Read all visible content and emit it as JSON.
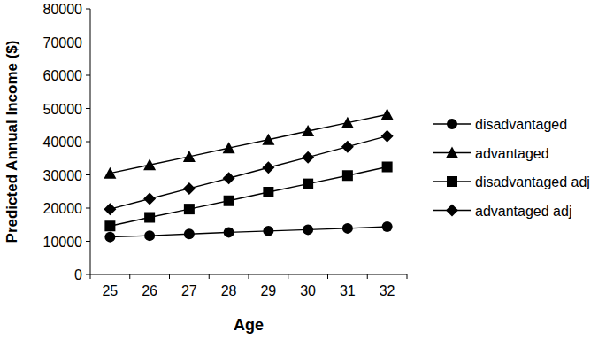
{
  "chart_data": {
    "type": "line",
    "x_label": "Age",
    "y_label": "Predicted Annual Income ($)",
    "categories": [
      "25",
      "26",
      "27",
      "28",
      "29",
      "30",
      "31",
      "32"
    ],
    "series": [
      {
        "name": "disadvantaged",
        "color": "#000000",
        "marker": "circle",
        "values": [
          11300,
          11700,
          12200,
          12700,
          13100,
          13500,
          13900,
          14400
        ]
      },
      {
        "name": "advantaged",
        "color": "#000000",
        "marker": "triangle",
        "values": [
          30500,
          33000,
          35500,
          38100,
          40600,
          43200,
          45700,
          48200
        ]
      },
      {
        "name": "disadvantaged adj",
        "color": "#000000",
        "marker": "square",
        "values": [
          14600,
          17200,
          19700,
          22200,
          24800,
          27300,
          29800,
          32400
        ]
      },
      {
        "name": "advantaged adj",
        "color": "#000000",
        "marker": "diamond",
        "values": [
          19700,
          22800,
          25900,
          29000,
          32200,
          35300,
          38500,
          41700
        ]
      }
    ],
    "ylim": [
      0,
      80000
    ],
    "yticks": [
      0,
      10000,
      20000,
      30000,
      40000,
      50000,
      60000,
      70000,
      80000
    ],
    "grid": false,
    "legend": "right"
  }
}
